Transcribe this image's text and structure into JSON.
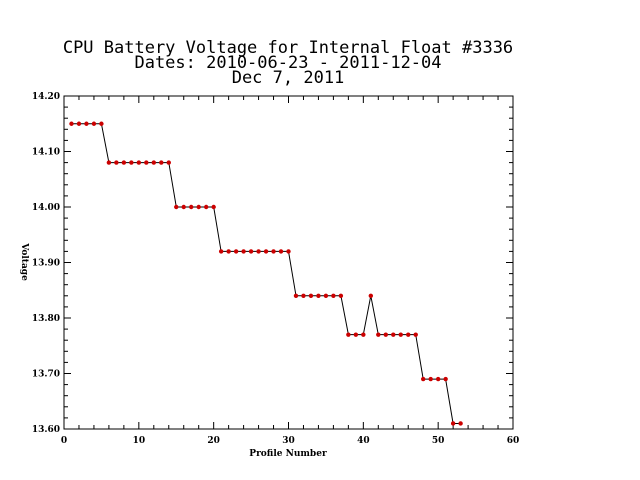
{
  "chart_data": {
    "type": "line",
    "title_lines": [
      "CPU Battery Voltage for Internal Float #3336",
      "Dates:  2010-06-23 -  2011-12-04",
      "Dec  7, 2011"
    ],
    "xlabel": "Profile Number",
    "ylabel": "Voltage",
    "xlim": [
      0,
      60
    ],
    "ylim": [
      13.6,
      14.2
    ],
    "x_ticks": [
      0,
      10,
      20,
      30,
      40,
      50,
      60
    ],
    "x_tick_labels": [
      "0",
      "10",
      "20",
      "30",
      "40",
      "50",
      "60"
    ],
    "y_ticks": [
      13.6,
      13.7,
      13.8,
      13.9,
      14.0,
      14.1,
      14.2
    ],
    "y_tick_labels": [
      "13.60",
      "13.70",
      "13.80",
      "13.90",
      "14.00",
      "14.10",
      "14.20"
    ],
    "grid": false,
    "line_color": "#000000",
    "marker_color": "#cc0000",
    "series": [
      {
        "x": [
          1,
          2,
          3,
          4,
          5,
          6,
          7,
          8,
          9,
          10,
          11,
          12,
          13,
          14,
          15,
          16,
          17,
          18,
          19,
          20,
          21,
          22,
          23,
          24,
          25,
          26,
          27,
          28,
          29,
          30,
          31,
          32,
          33,
          34,
          35,
          36,
          37,
          38,
          39,
          40,
          41,
          42,
          43,
          44,
          45,
          46,
          47,
          48,
          49,
          50,
          51,
          52,
          53
        ],
        "y": [
          14.15,
          14.15,
          14.15,
          14.15,
          14.15,
          14.08,
          14.08,
          14.08,
          14.08,
          14.08,
          14.08,
          14.08,
          14.08,
          14.08,
          14.0,
          14.0,
          14.0,
          14.0,
          14.0,
          14.0,
          13.92,
          13.92,
          13.92,
          13.92,
          13.92,
          13.92,
          13.92,
          13.92,
          13.92,
          13.92,
          13.84,
          13.84,
          13.84,
          13.84,
          13.84,
          13.84,
          13.84,
          13.77,
          13.77,
          13.77,
          13.84,
          13.77,
          13.77,
          13.77,
          13.77,
          13.77,
          13.77,
          13.69,
          13.69,
          13.69,
          13.69,
          13.61,
          13.61
        ]
      }
    ]
  }
}
